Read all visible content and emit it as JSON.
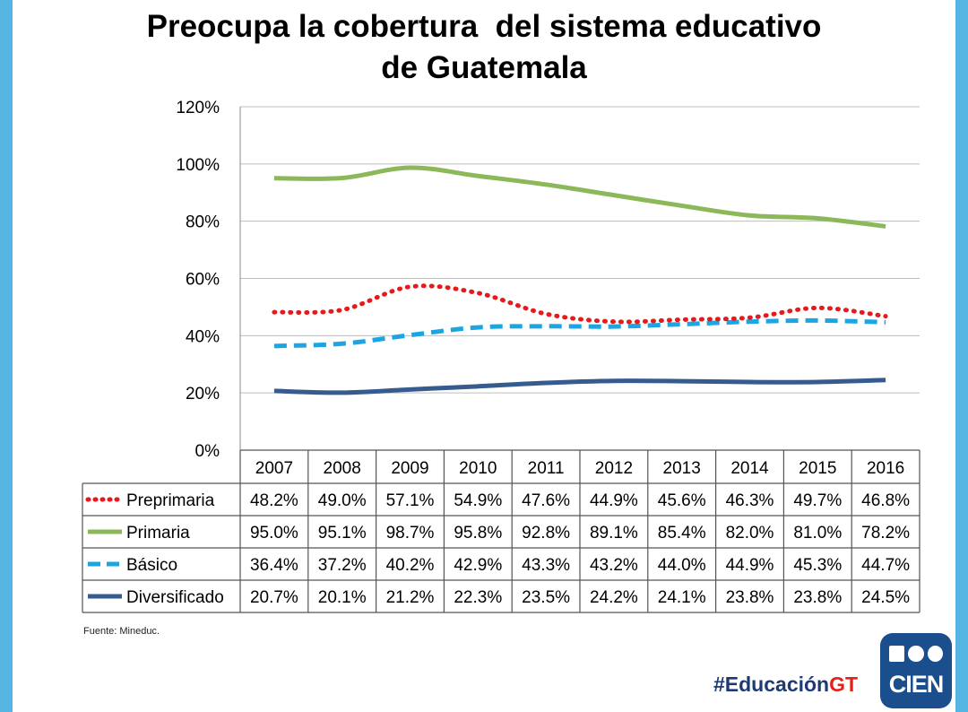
{
  "title_line1": "Preocupa la cobertura  del sistema educativo",
  "title_line2": "de Guatemala",
  "source": "Fuente: Mineduc.",
  "hashtag_main": "#Educación",
  "hashtag_accent": "GT",
  "logo_text": "CIEN",
  "colors": {
    "frame": "#55b6e4",
    "logo_bg": "#1a4e8c",
    "hashtag": "#1e3a73",
    "hashtag_accent": "#e2231a"
  },
  "chart_data": {
    "type": "line",
    "title": "Preocupa la cobertura  del sistema educativo de Guatemala",
    "xlabel": "",
    "ylabel": "",
    "ylim": [
      0,
      120
    ],
    "yticks": [
      "0%",
      "20%",
      "40%",
      "60%",
      "80%",
      "100%",
      "120%"
    ],
    "ytick_values": [
      0,
      20,
      40,
      60,
      80,
      100,
      120
    ],
    "grid": true,
    "legend": "data-table-below",
    "categories": [
      "2007",
      "2008",
      "2009",
      "2010",
      "2011",
      "2012",
      "2013",
      "2014",
      "2015",
      "2016"
    ],
    "series": [
      {
        "name": "Preprimaria",
        "color": "#e41a1c",
        "style": "dotted",
        "values": [
          48.2,
          49.0,
          57.1,
          54.9,
          47.6,
          44.9,
          45.6,
          46.3,
          49.7,
          46.8
        ],
        "labels": [
          "48.2%",
          "49.0%",
          "57.1%",
          "54.9%",
          "47.6%",
          "44.9%",
          "45.6%",
          "46.3%",
          "49.7%",
          "46.8%"
        ]
      },
      {
        "name": "Primaria",
        "color": "#8cb85a",
        "style": "solid",
        "values": [
          95.0,
          95.1,
          98.7,
          95.8,
          92.8,
          89.1,
          85.4,
          82.0,
          81.0,
          78.2
        ],
        "labels": [
          "95.0%",
          "95.1%",
          "98.7%",
          "95.8%",
          "92.8%",
          "89.1%",
          "85.4%",
          "82.0%",
          "81.0%",
          "78.2%"
        ]
      },
      {
        "name": "Básico",
        "color": "#1ba6e3",
        "style": "dashed",
        "values": [
          36.4,
          37.2,
          40.2,
          42.9,
          43.3,
          43.2,
          44.0,
          44.9,
          45.3,
          44.7
        ],
        "labels": [
          "36.4%",
          "37.2%",
          "40.2%",
          "42.9%",
          "43.3%",
          "43.2%",
          "44.0%",
          "44.9%",
          "45.3%",
          "44.7%"
        ]
      },
      {
        "name": "Diversificado",
        "color": "#365b8f",
        "style": "solid",
        "values": [
          20.7,
          20.1,
          21.2,
          22.3,
          23.5,
          24.2,
          24.1,
          23.8,
          23.8,
          24.5
        ],
        "labels": [
          "20.7%",
          "20.1%",
          "21.2%",
          "22.3%",
          "23.5%",
          "24.2%",
          "24.1%",
          "23.8%",
          "23.8%",
          "24.5%"
        ]
      }
    ]
  }
}
